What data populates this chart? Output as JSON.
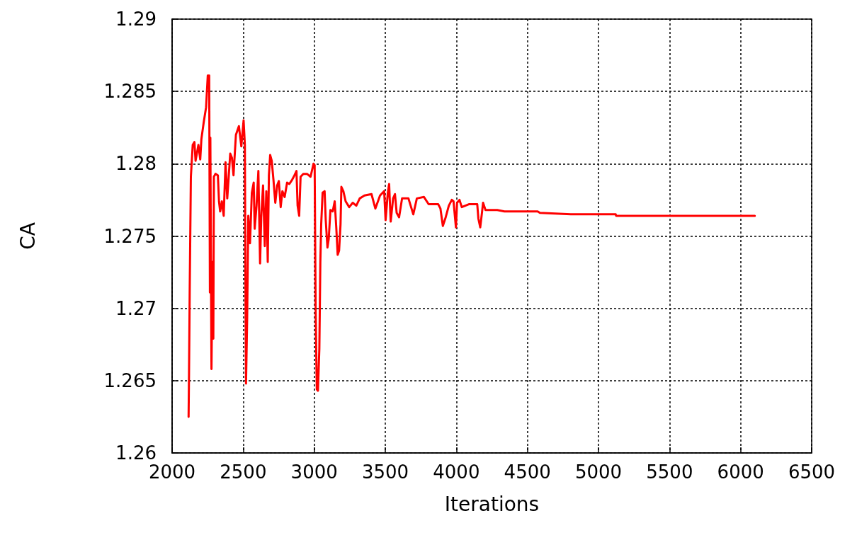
{
  "chart_data": {
    "type": "line",
    "xlabel": "Iterations",
    "ylabel": "CA",
    "x": [
      2116,
      2119,
      2124,
      2132,
      2145,
      2157,
      2165,
      2185,
      2198,
      2206,
      2223,
      2239,
      2251,
      2261,
      2266,
      2269,
      2277,
      2284,
      2290,
      2294,
      2305,
      2322,
      2330,
      2338,
      2350,
      2363,
      2376,
      2388,
      2399,
      2409,
      2421,
      2432,
      2449,
      2470,
      2487,
      2503,
      2512,
      2515,
      2520,
      2528,
      2536,
      2548,
      2561,
      2574,
      2581,
      2594,
      2607,
      2619,
      2627,
      2640,
      2652,
      2663,
      2673,
      2681,
      2690,
      2701,
      2713,
      2726,
      2739,
      2751,
      2764,
      2776,
      2792,
      2809,
      2825,
      2845,
      2861,
      2875,
      2883,
      2894,
      2904,
      2924,
      2949,
      2974,
      2995,
      3003,
      3010,
      3018,
      3026,
      3036,
      3043,
      3049,
      3059,
      3073,
      3081,
      3093,
      3102,
      3114,
      3130,
      3144,
      3155,
      3165,
      3175,
      3185,
      3191,
      3205,
      3221,
      3246,
      3271,
      3296,
      3320,
      3353,
      3403,
      3430,
      3463,
      3492,
      3502,
      3518,
      3527,
      3538,
      3555,
      3568,
      3580,
      3597,
      3618,
      3663,
      3697,
      3722,
      3772,
      3805,
      3872,
      3888,
      3905,
      3925,
      3947,
      3968,
      3980,
      3997,
      4005,
      4022,
      4038,
      4088,
      4147,
      4155,
      4168,
      4180,
      4188,
      4205,
      4288,
      4338,
      4372,
      4572,
      4588,
      4805,
      5121,
      5124,
      6100
    ],
    "series": [
      {
        "color": "#ff0000",
        "values": [
          1.2625,
          1.2655,
          1.2714,
          1.2791,
          1.2813,
          1.2815,
          1.2802,
          1.2813,
          1.2803,
          1.2817,
          1.2829,
          1.2839,
          1.2861,
          1.2861,
          1.2711,
          1.2818,
          1.2658,
          1.2732,
          1.2679,
          1.2791,
          1.2793,
          1.2792,
          1.2774,
          1.2767,
          1.2774,
          1.2764,
          1.2801,
          1.2776,
          1.2792,
          1.2807,
          1.2804,
          1.2792,
          1.282,
          1.2826,
          1.2812,
          1.283,
          1.2813,
          1.2738,
          1.2648,
          1.2693,
          1.2764,
          1.2745,
          1.278,
          1.2787,
          1.2755,
          1.2771,
          1.2795,
          1.2731,
          1.2763,
          1.2785,
          1.2743,
          1.2781,
          1.2732,
          1.2792,
          1.2806,
          1.2802,
          1.2789,
          1.2773,
          1.2785,
          1.2788,
          1.277,
          1.2781,
          1.2777,
          1.2787,
          1.2786,
          1.2789,
          1.2792,
          1.2795,
          1.2771,
          1.2764,
          1.2791,
          1.2793,
          1.2793,
          1.2791,
          1.28,
          1.2799,
          1.2698,
          1.2644,
          1.2643,
          1.2672,
          1.2732,
          1.2758,
          1.278,
          1.2781,
          1.2761,
          1.2742,
          1.2748,
          1.2768,
          1.2767,
          1.2774,
          1.2756,
          1.2737,
          1.274,
          1.2758,
          1.2784,
          1.2781,
          1.2774,
          1.277,
          1.2773,
          1.2771,
          1.2776,
          1.2778,
          1.2779,
          1.2769,
          1.2778,
          1.2781,
          1.2761,
          1.278,
          1.2786,
          1.276,
          1.2776,
          1.2779,
          1.2766,
          1.2763,
          1.2776,
          1.2776,
          1.2765,
          1.2776,
          1.2777,
          1.2772,
          1.2772,
          1.2769,
          1.2757,
          1.2763,
          1.2771,
          1.2775,
          1.2774,
          1.2756,
          1.2773,
          1.2775,
          1.277,
          1.2772,
          1.2772,
          1.2762,
          1.2756,
          1.2766,
          1.2773,
          1.2768,
          1.2768,
          1.2767,
          1.2767,
          1.2767,
          1.2766,
          1.2765,
          1.2765,
          1.2764,
          1.2764
        ]
      }
    ],
    "xlim": [
      2000,
      6500
    ],
    "xticks": [
      2000,
      2500,
      3000,
      3500,
      4000,
      4500,
      5000,
      5500,
      6000,
      6500
    ],
    "ylim": [
      1.26,
      1.29
    ],
    "yticks": [
      1.26,
      1.265,
      1.27,
      1.275,
      1.28,
      1.285,
      1.29
    ],
    "grid": true,
    "marker": "none",
    "line_style": "solid"
  }
}
